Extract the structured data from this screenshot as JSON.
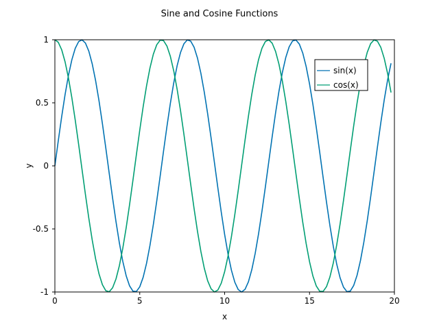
{
  "chart_data": {
    "type": "line",
    "title": "Sine and Cosine Functions",
    "xlabel": "x",
    "ylabel": "y",
    "xlim": [
      0,
      20
    ],
    "ylim": [
      -1,
      1
    ],
    "x_ticks": [
      0,
      5,
      10,
      15,
      20
    ],
    "x_tick_labels": [
      "0",
      "5",
      "10",
      "15",
      "20"
    ],
    "y_ticks": [
      -1,
      -0.5,
      0,
      0.5,
      1
    ],
    "y_tick_labels": [
      "-1",
      "-0.5",
      "0",
      "0.5",
      "1"
    ],
    "grid": false,
    "legend_position": "top-right",
    "x_range": [
      0,
      19.8
    ],
    "x_step": 0.2,
    "series": [
      {
        "name": "sin(x)",
        "function": "sin",
        "color": "#0072B2"
      },
      {
        "name": "cos(x)",
        "function": "cos",
        "color": "#009E73"
      }
    ]
  }
}
